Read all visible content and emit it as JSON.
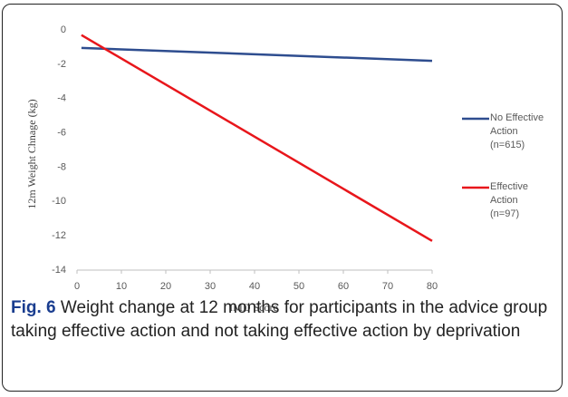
{
  "chart_data": {
    "type": "line",
    "xlabel": "IMD Score",
    "ylabel": "12m Weight Chnage (kg)",
    "x": [
      1,
      80
    ],
    "series": [
      {
        "name": "No Effective Action (n=615)",
        "color": "#2e4d8f",
        "values": [
          -1.05,
          -1.8
        ]
      },
      {
        "name": "Effective Action (n=97)",
        "color": "#e8161b",
        "values": [
          -0.3,
          -12.3
        ]
      }
    ],
    "xlim": [
      0,
      80
    ],
    "xticks": [
      0,
      10,
      20,
      30,
      40,
      50,
      60,
      70,
      80
    ],
    "ylim": [
      -14,
      0
    ],
    "yticks": [
      0,
      -2,
      -4,
      -6,
      -8,
      -10,
      -12,
      -14
    ],
    "grid": false,
    "legend": "right"
  },
  "caption": {
    "label": "Fig. 6",
    "text": "Weight change at 12 months for participants in the advice group taking effective action and not taking effective action by deprivation"
  }
}
